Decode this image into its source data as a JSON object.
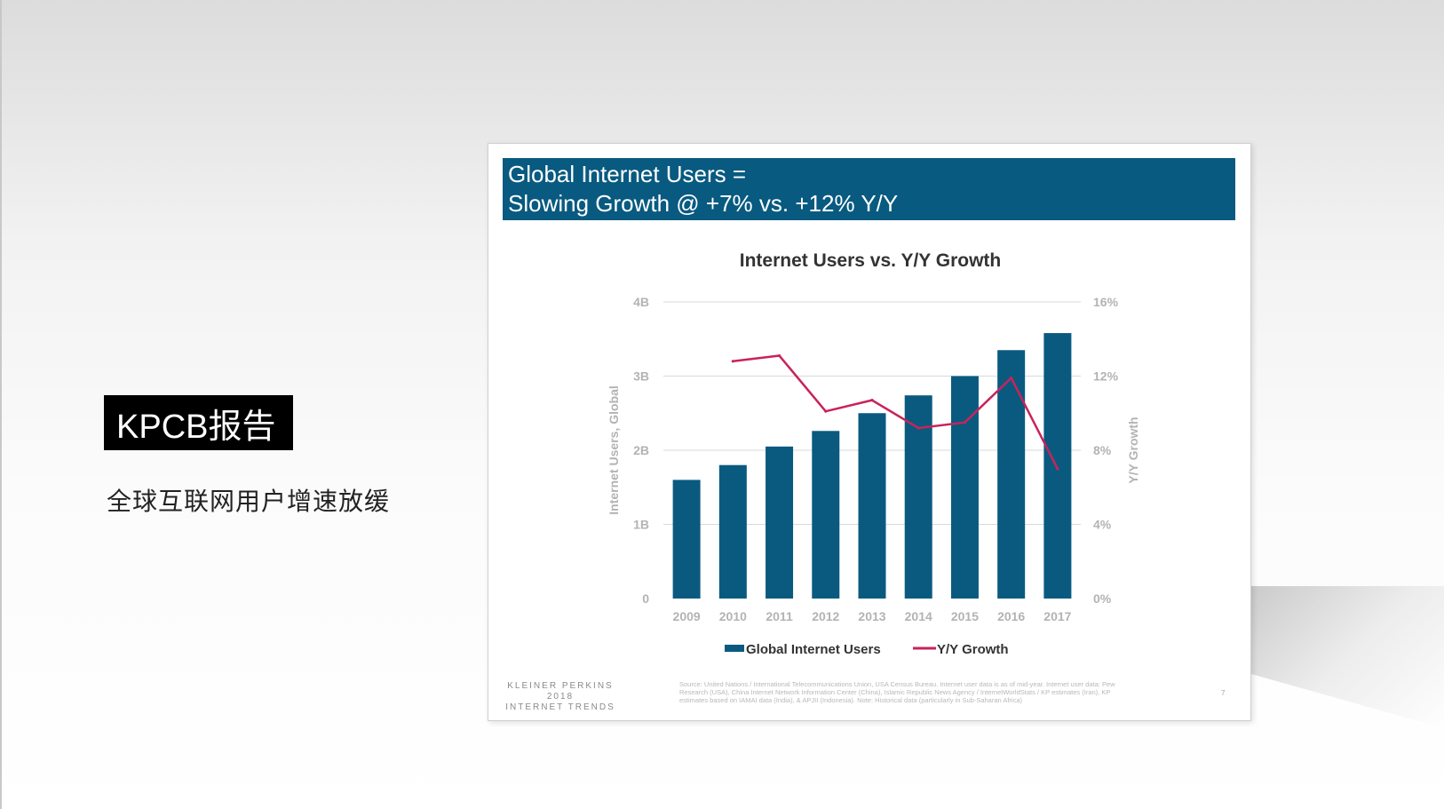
{
  "badge": {
    "label": "KPCB报告"
  },
  "subtitle": "全球互联网用户增速放缓",
  "slide": {
    "header_line1": "Global Internet Users =",
    "header_line2": "Slowing Growth @ +7% vs. +12% Y/Y",
    "footer_logo_line1": "KLEINER PERKINS",
    "footer_logo_line2": "2018",
    "footer_logo_line3": "INTERNET TRENDS",
    "footer_source": "Source: United Nations / International Telecommunications Union, USA Census Bureau. Internet user data is as of mid-year. Internet user data: Pew Research (USA), China Internet Network Information Center (China), Islamic Republic News Agency / InternetWorldStats / KP estimates (Iran), KP estimates based on IAMAI data (India), & APJII (Indonesia). Note: Historical data (particularly in Sub-Saharan Africa)",
    "page_number": "7"
  },
  "colors": {
    "bar": "#0a5a80",
    "line": "#c8235a",
    "header": "#085a80",
    "axis_text": "#b3b3b3",
    "title_text": "#333333"
  },
  "chart_data": {
    "type": "bar",
    "title": "Internet Users vs. Y/Y Growth",
    "categories": [
      "2009",
      "2010",
      "2011",
      "2012",
      "2013",
      "2014",
      "2015",
      "2016",
      "2017"
    ],
    "series": [
      {
        "name": "Global Internet Users",
        "type": "bar",
        "axis": "left",
        "values": [
          1.6,
          1.8,
          2.05,
          2.26,
          2.5,
          2.74,
          3.0,
          3.35,
          3.58
        ]
      },
      {
        "name": "Y/Y Growth",
        "type": "line",
        "axis": "right",
        "values": [
          null,
          12.8,
          13.1,
          10.1,
          10.7,
          9.2,
          9.5,
          11.9,
          7.0
        ]
      }
    ],
    "ylabel": "Internet Users, Global",
    "ylabel_right": "Y/Y Growth",
    "ylim": [
      0,
      4
    ],
    "ylim_right": [
      0,
      16
    ],
    "yticks": [
      "0",
      "1B",
      "2B",
      "3B",
      "4B"
    ],
    "yticks_right": [
      "0%",
      "4%",
      "8%",
      "12%",
      "16%"
    ],
    "grid": true,
    "legend": "bottom"
  }
}
